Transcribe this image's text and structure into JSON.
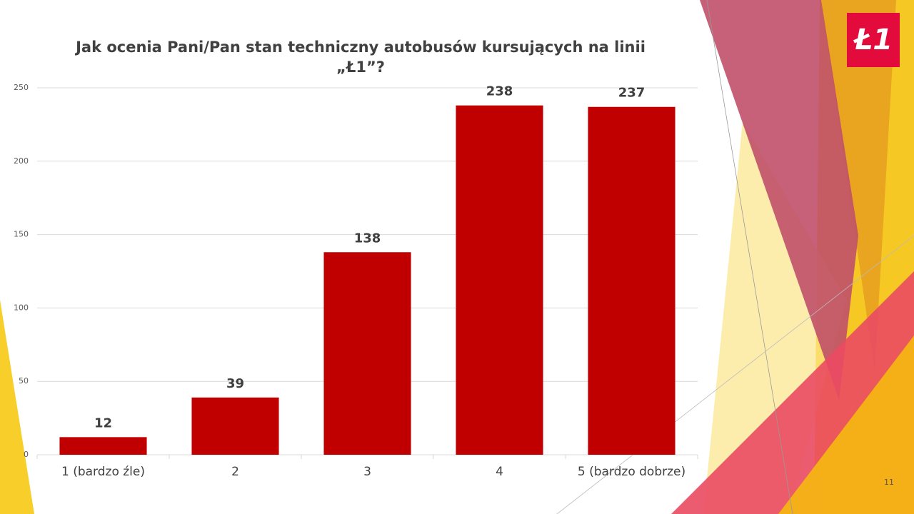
{
  "chart_data": {
    "type": "bar",
    "title": "Jak ocenia Pani/Pan stan techniczny autobusów kursujących na linii „Ł1”?",
    "categories": [
      "1 (bardzo źle)",
      "2",
      "3",
      "4",
      "5 (bardzo dobrze)"
    ],
    "values": [
      12,
      39,
      138,
      238,
      237
    ],
    "color": "#c00000",
    "ylim": [
      0,
      250
    ],
    "yticks": [
      0,
      50,
      100,
      150,
      200,
      250
    ],
    "grid": true
  },
  "slide": {
    "logo": "Ł1",
    "number": "11"
  }
}
